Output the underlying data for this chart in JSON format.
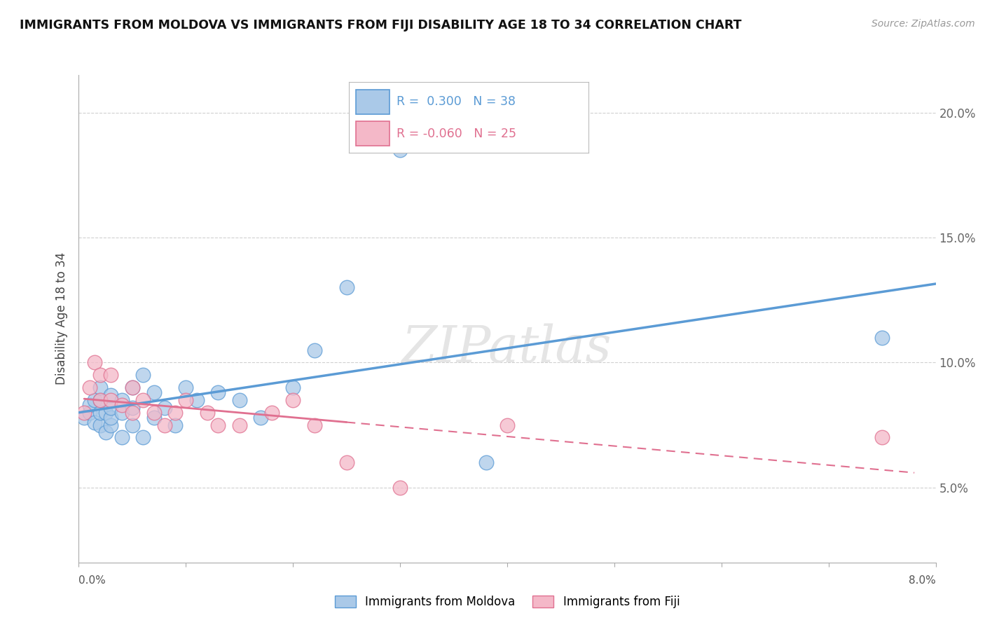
{
  "title": "IMMIGRANTS FROM MOLDOVA VS IMMIGRANTS FROM FIJI DISABILITY AGE 18 TO 34 CORRELATION CHART",
  "source": "Source: ZipAtlas.com",
  "ylabel": "Disability Age 18 to 34",
  "yticks": [
    0.05,
    0.1,
    0.15,
    0.2
  ],
  "ytick_labels": [
    "5.0%",
    "10.0%",
    "15.0%",
    "20.0%"
  ],
  "xlim": [
    0.0,
    0.08
  ],
  "ylim": [
    0.02,
    0.215
  ],
  "moldova_color": "#aac9e8",
  "moldova_line_color": "#5b9bd5",
  "fiji_color": "#f4b8c8",
  "fiji_line_color": "#e07090",
  "moldova_x": [
    0.0005,
    0.001,
    0.001,
    0.0015,
    0.0015,
    0.002,
    0.002,
    0.002,
    0.002,
    0.0025,
    0.0025,
    0.003,
    0.003,
    0.003,
    0.003,
    0.004,
    0.004,
    0.004,
    0.005,
    0.005,
    0.005,
    0.006,
    0.006,
    0.007,
    0.007,
    0.008,
    0.009,
    0.01,
    0.011,
    0.013,
    0.015,
    0.017,
    0.02,
    0.022,
    0.025,
    0.03,
    0.038,
    0.075
  ],
  "moldova_y": [
    0.078,
    0.08,
    0.083,
    0.076,
    0.085,
    0.075,
    0.08,
    0.085,
    0.09,
    0.072,
    0.08,
    0.075,
    0.078,
    0.082,
    0.087,
    0.07,
    0.08,
    0.085,
    0.075,
    0.082,
    0.09,
    0.07,
    0.095,
    0.078,
    0.088,
    0.082,
    0.075,
    0.09,
    0.085,
    0.088,
    0.085,
    0.078,
    0.09,
    0.105,
    0.13,
    0.185,
    0.06,
    0.11
  ],
  "fiji_x": [
    0.0005,
    0.001,
    0.0015,
    0.002,
    0.002,
    0.003,
    0.003,
    0.004,
    0.005,
    0.005,
    0.006,
    0.007,
    0.008,
    0.009,
    0.01,
    0.012,
    0.013,
    0.015,
    0.018,
    0.02,
    0.022,
    0.025,
    0.03,
    0.04,
    0.075
  ],
  "fiji_y": [
    0.08,
    0.09,
    0.1,
    0.095,
    0.085,
    0.085,
    0.095,
    0.083,
    0.08,
    0.09,
    0.085,
    0.08,
    0.075,
    0.08,
    0.085,
    0.08,
    0.075,
    0.075,
    0.08,
    0.085,
    0.075,
    0.06,
    0.05,
    0.075,
    0.07
  ],
  "grid_color": "#d0d0d0",
  "watermark_color": "#e5e5e5"
}
